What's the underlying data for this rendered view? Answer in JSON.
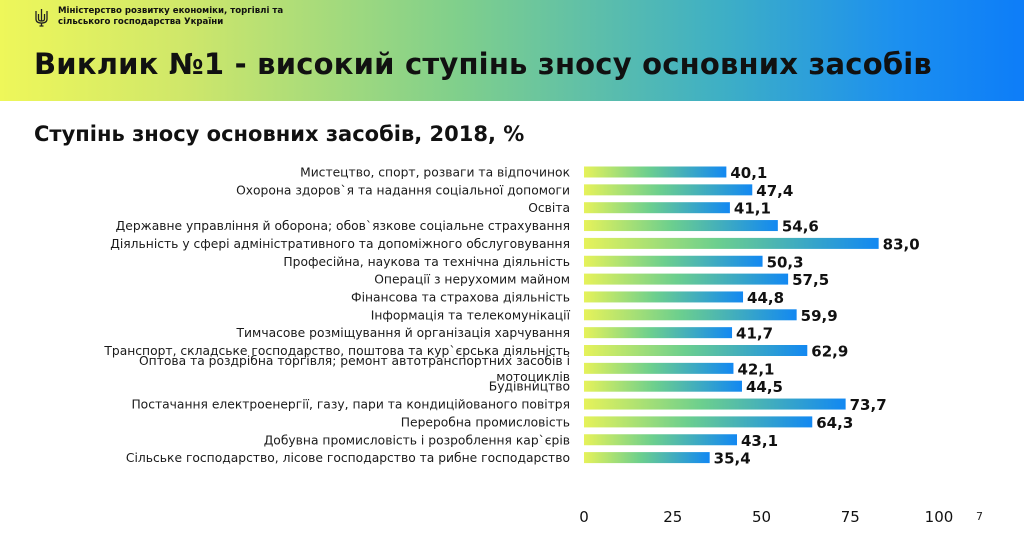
{
  "header": {
    "ministry_line1": "Міністерство розвитку економіки, торгівлі та",
    "ministry_line2": "сільського господарства України",
    "title": "Виклик №1 - високий ступінь зносу основних засобів"
  },
  "page_number": "7",
  "colors": {
    "bar_start": "#e6f25a",
    "bar_mid": "#6ccf8e",
    "bar_end": "#1288f2"
  },
  "chart_data": {
    "type": "bar",
    "orientation": "horizontal",
    "title": "Ступінь зносу основних засобів, 2018, %",
    "xlim": [
      0,
      100
    ],
    "x_ticks": [
      "0",
      "25",
      "50",
      "75",
      "100"
    ],
    "grid": false,
    "categories": [
      [
        "Мистецтво, спорт, розваги та відпочинок"
      ],
      [
        "Охорона здоров`я та надання соціальної допомоги"
      ],
      [
        "Освіта"
      ],
      [
        "Державне управління й оборона; обов`язкове соціальне страхування"
      ],
      [
        "Діяльність у сфері адміністративного та допоміжного обслуговування"
      ],
      [
        "Професійна, наукова та технічна діяльність"
      ],
      [
        "Операції з нерухомим майном"
      ],
      [
        "Фінансова та страхова діяльність"
      ],
      [
        "Інформація та телекомунікації"
      ],
      [
        "Тимчасове розміщування й організація харчування"
      ],
      [
        "Транспорт, складське господарство, поштова та кур`єрська діяльність"
      ],
      [
        "Оптова та роздрібна торгівля; ремонт автотранспортних засобів і",
        "мотоциклів"
      ],
      [
        "Будівництво"
      ],
      [
        "Постачання електроенергії, газу, пари та кондиційованого повітря"
      ],
      [
        "Переробна промисловість"
      ],
      [
        "Добувна промисловість і розроблення кар`єрів"
      ],
      [
        "Сільське господарство, лісове господарство та рибне господарство"
      ]
    ],
    "values": [
      40.1,
      47.4,
      41.1,
      54.6,
      83.0,
      50.3,
      57.5,
      44.8,
      59.9,
      41.7,
      62.9,
      42.1,
      44.5,
      73.7,
      64.3,
      43.1,
      35.4
    ],
    "value_labels": [
      "40,1",
      "47,4",
      "41,1",
      "54,6",
      "83,0",
      "50,3",
      "57,5",
      "44,8",
      "59,9",
      "41,7",
      "62,9",
      "42,1",
      "44,5",
      "73,7",
      "64,3",
      "43,1",
      "35,4"
    ]
  }
}
